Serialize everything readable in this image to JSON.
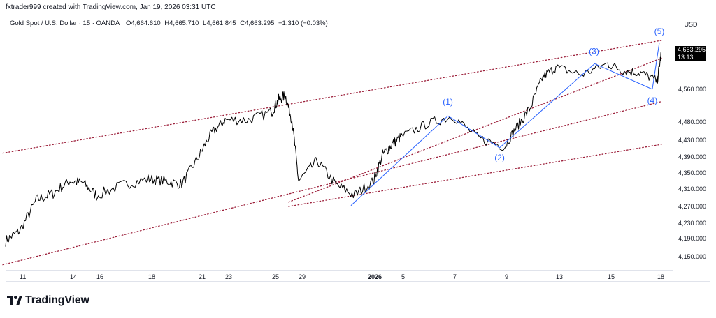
{
  "header": {
    "byline": "fxtrader999 created with TradingView.com, Jan 19, 2026 03:31 UTC"
  },
  "legend": {
    "symbol": "Gold Spot / U.S. Dollar · 15 · OANDA",
    "open": "O4,664.610",
    "high": "H4,665.710",
    "low": "L4,661.845",
    "close": "C4,663.295",
    "change": "−1.310 (−0.03%)"
  },
  "price_scale": {
    "currency": "USD",
    "last_price": "4,663.295",
    "countdown": "13:13"
  },
  "brand": {
    "logo_text": "TradingView"
  },
  "colors": {
    "candles": "#000000",
    "channel_lines": "#9c1f3a",
    "wave_lines": "#2962ff",
    "wave_labels": "#2962ff"
  },
  "chart_data": {
    "type": "line",
    "title": "Gold Spot / U.S. Dollar · 15 · OANDA",
    "xlabel": "",
    "ylabel": "",
    "ylim": [
      4120,
      4700
    ],
    "y_ticks": [
      "4,150.000",
      "4,190.000",
      "4,230.000",
      "4,270.000",
      "4,310.000",
      "4,350.000",
      "4,390.000",
      "4,430.000",
      "4,480.000",
      "4,560.000"
    ],
    "x_ticks": [
      "11",
      "14",
      "16",
      "18",
      "21",
      "23",
      "25",
      "29",
      "2026",
      "5",
      "7",
      "9",
      "13",
      "15",
      "18"
    ],
    "price_path": [
      [
        "Dec 10",
        4185
      ],
      [
        "Dec 11",
        4210
      ],
      [
        "Dec 12",
        4285
      ],
      [
        "Dec 13",
        4300
      ],
      [
        "Dec 14",
        4330
      ],
      [
        "Dec 15",
        4325
      ],
      [
        "Dec 16",
        4295
      ],
      [
        "Dec 17",
        4320
      ],
      [
        "Dec 18",
        4335
      ],
      [
        "Dec 19",
        4330
      ],
      [
        "Dec 20",
        4322
      ],
      [
        "Dec 21",
        4390
      ],
      [
        "Dec 22",
        4450
      ],
      [
        "Dec 23",
        4485
      ],
      [
        "Dec 24",
        4485
      ],
      [
        "Dec 25",
        4505
      ],
      [
        "Dec 26",
        4535
      ],
      [
        "Dec 27",
        4545
      ],
      [
        "Dec 28",
        4485
      ],
      [
        "Dec 29",
        4330
      ],
      [
        "Dec 30",
        4380
      ],
      [
        "Dec 31",
        4320
      ],
      [
        "Jan 1",
        4295
      ],
      [
        "Jan 2",
        4330
      ],
      [
        "Jan 3",
        4395
      ],
      [
        "Jan 4",
        4420
      ],
      [
        "Jan 5",
        4440
      ],
      [
        "Jan 6",
        4475
      ],
      [
        "Jan 7",
        4495
      ],
      [
        "Jan 8",
        4435
      ],
      [
        "Jan 9",
        4415
      ],
      [
        "Jan 10",
        4470
      ],
      [
        "Jan 11",
        4515
      ],
      [
        "Jan 12",
        4595
      ],
      [
        "Jan 13",
        4620
      ],
      [
        "Jan 14",
        4600
      ],
      [
        "Jan 15",
        4630
      ],
      [
        "Jan 16",
        4610
      ],
      [
        "Jan 17",
        4605
      ],
      [
        "Jan 18",
        4583
      ],
      [
        "Jan 19",
        4663
      ]
    ],
    "wave_labels": [
      "(1)",
      "(2)",
      "(3)",
      "(4)",
      "(5)"
    ],
    "series": [
      {
        "values": [
          4272,
          4495,
          4412,
          4630,
          4560,
          4685
        ]
      }
    ]
  }
}
